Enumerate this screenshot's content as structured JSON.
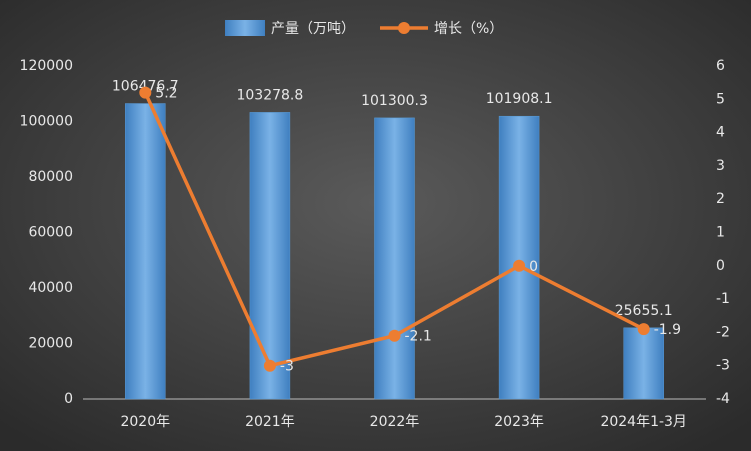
{
  "chart_data": {
    "type": "bar_line",
    "categories": [
      "2020年",
      "2021年",
      "2022年",
      "2023年",
      "2024年1-3月"
    ],
    "series": [
      {
        "name": "产量（万吨）",
        "type": "bar",
        "color": "#5b9bd5",
        "values": [
          106476.7,
          103278.8,
          101300.3,
          101908.1,
          25655.1
        ]
      },
      {
        "name": "增长（%）",
        "type": "line",
        "axis": "y2",
        "color": "#ed7d31",
        "values": [
          5.2,
          -3,
          -2.1,
          0,
          -1.9
        ]
      }
    ],
    "ylim": [
      0,
      120000
    ],
    "yticks": [
      0,
      20000,
      40000,
      60000,
      80000,
      100000,
      120000
    ],
    "y2lim": [
      -4,
      6
    ],
    "y2ticks": [
      -4,
      -3,
      -2,
      -1,
      0,
      1,
      2,
      3,
      4,
      5,
      6
    ]
  }
}
